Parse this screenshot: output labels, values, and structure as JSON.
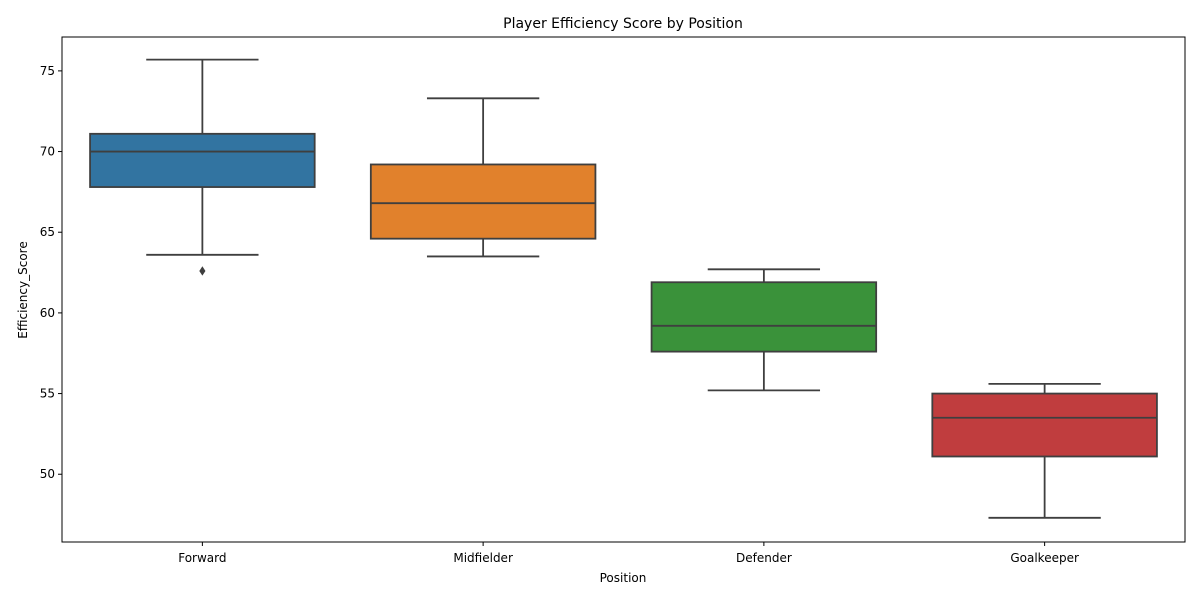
{
  "chart_data": {
    "type": "box",
    "title": "Player Efficiency Score by Position",
    "xlabel": "Position",
    "ylabel": "Efficiency_Score",
    "ylim": [
      45.8,
      77.1
    ],
    "yticks": [
      50,
      55,
      60,
      65,
      70,
      75
    ],
    "grid": false,
    "legend": "none",
    "categories": [
      "Forward",
      "Midfielder",
      "Defender",
      "Goalkeeper"
    ],
    "boxes": [
      {
        "category": "Forward",
        "whisker_low": 63.6,
        "q1": 67.8,
        "median": 70.0,
        "q3": 71.1,
        "whisker_high": 75.7,
        "outliers": [
          62.6
        ],
        "color": "#3274a1"
      },
      {
        "category": "Midfielder",
        "whisker_low": 63.5,
        "q1": 64.6,
        "median": 66.8,
        "q3": 69.2,
        "whisker_high": 73.3,
        "outliers": [],
        "color": "#e1812c"
      },
      {
        "category": "Defender",
        "whisker_low": 55.2,
        "q1": 57.6,
        "median": 59.2,
        "q3": 61.9,
        "whisker_high": 62.7,
        "outliers": [],
        "color": "#3a923a"
      },
      {
        "category": "Goalkeeper",
        "whisker_low": 47.3,
        "q1": 51.1,
        "median": 53.5,
        "q3": 55.0,
        "whisker_high": 55.6,
        "outliers": [],
        "color": "#c03d3e"
      }
    ]
  }
}
